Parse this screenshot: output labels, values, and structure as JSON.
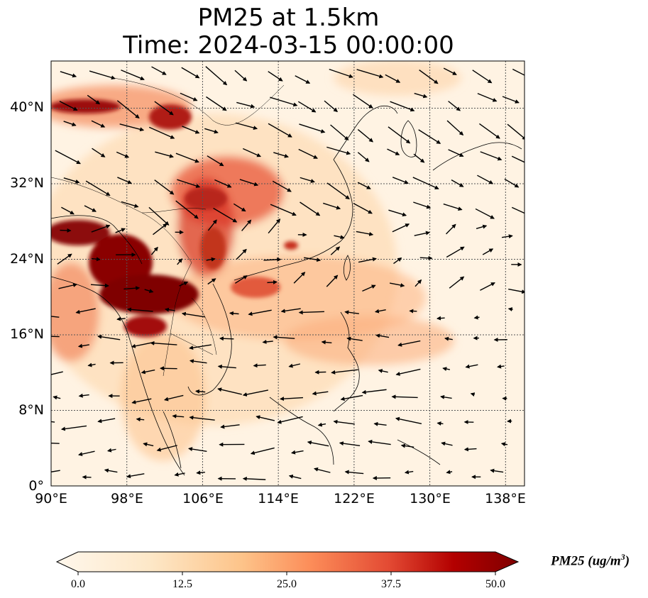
{
  "title": {
    "line1": "PM25 at 1.5km",
    "line2": "Time: 2024-03-15 00:00:00"
  },
  "map": {
    "lon_range": [
      90,
      140
    ],
    "lat_range": [
      0,
      45
    ],
    "lon_ticks": [
      "90°E",
      "98°E",
      "106°E",
      "114°E",
      "122°E",
      "130°E",
      "138°E"
    ],
    "lat_ticks": [
      "0°",
      "8°N",
      "16°N",
      "24°N",
      "32°N",
      "40°N"
    ],
    "gridlines": true,
    "field": "PM25",
    "vectors": "wind"
  },
  "colorbar": {
    "label_main": "PM25 (ug/m",
    "label_exp": "3",
    "label_close": ")",
    "min": 0.0,
    "max": 50.0,
    "ticks": [
      "0.0",
      "12.5",
      "25.0",
      "37.5",
      "50.0"
    ],
    "colormap": "OrRd",
    "colors": [
      "#fff7ec",
      "#fdd49e",
      "#fc8d59",
      "#d7301f",
      "#b30000",
      "#7f0000"
    ]
  }
}
